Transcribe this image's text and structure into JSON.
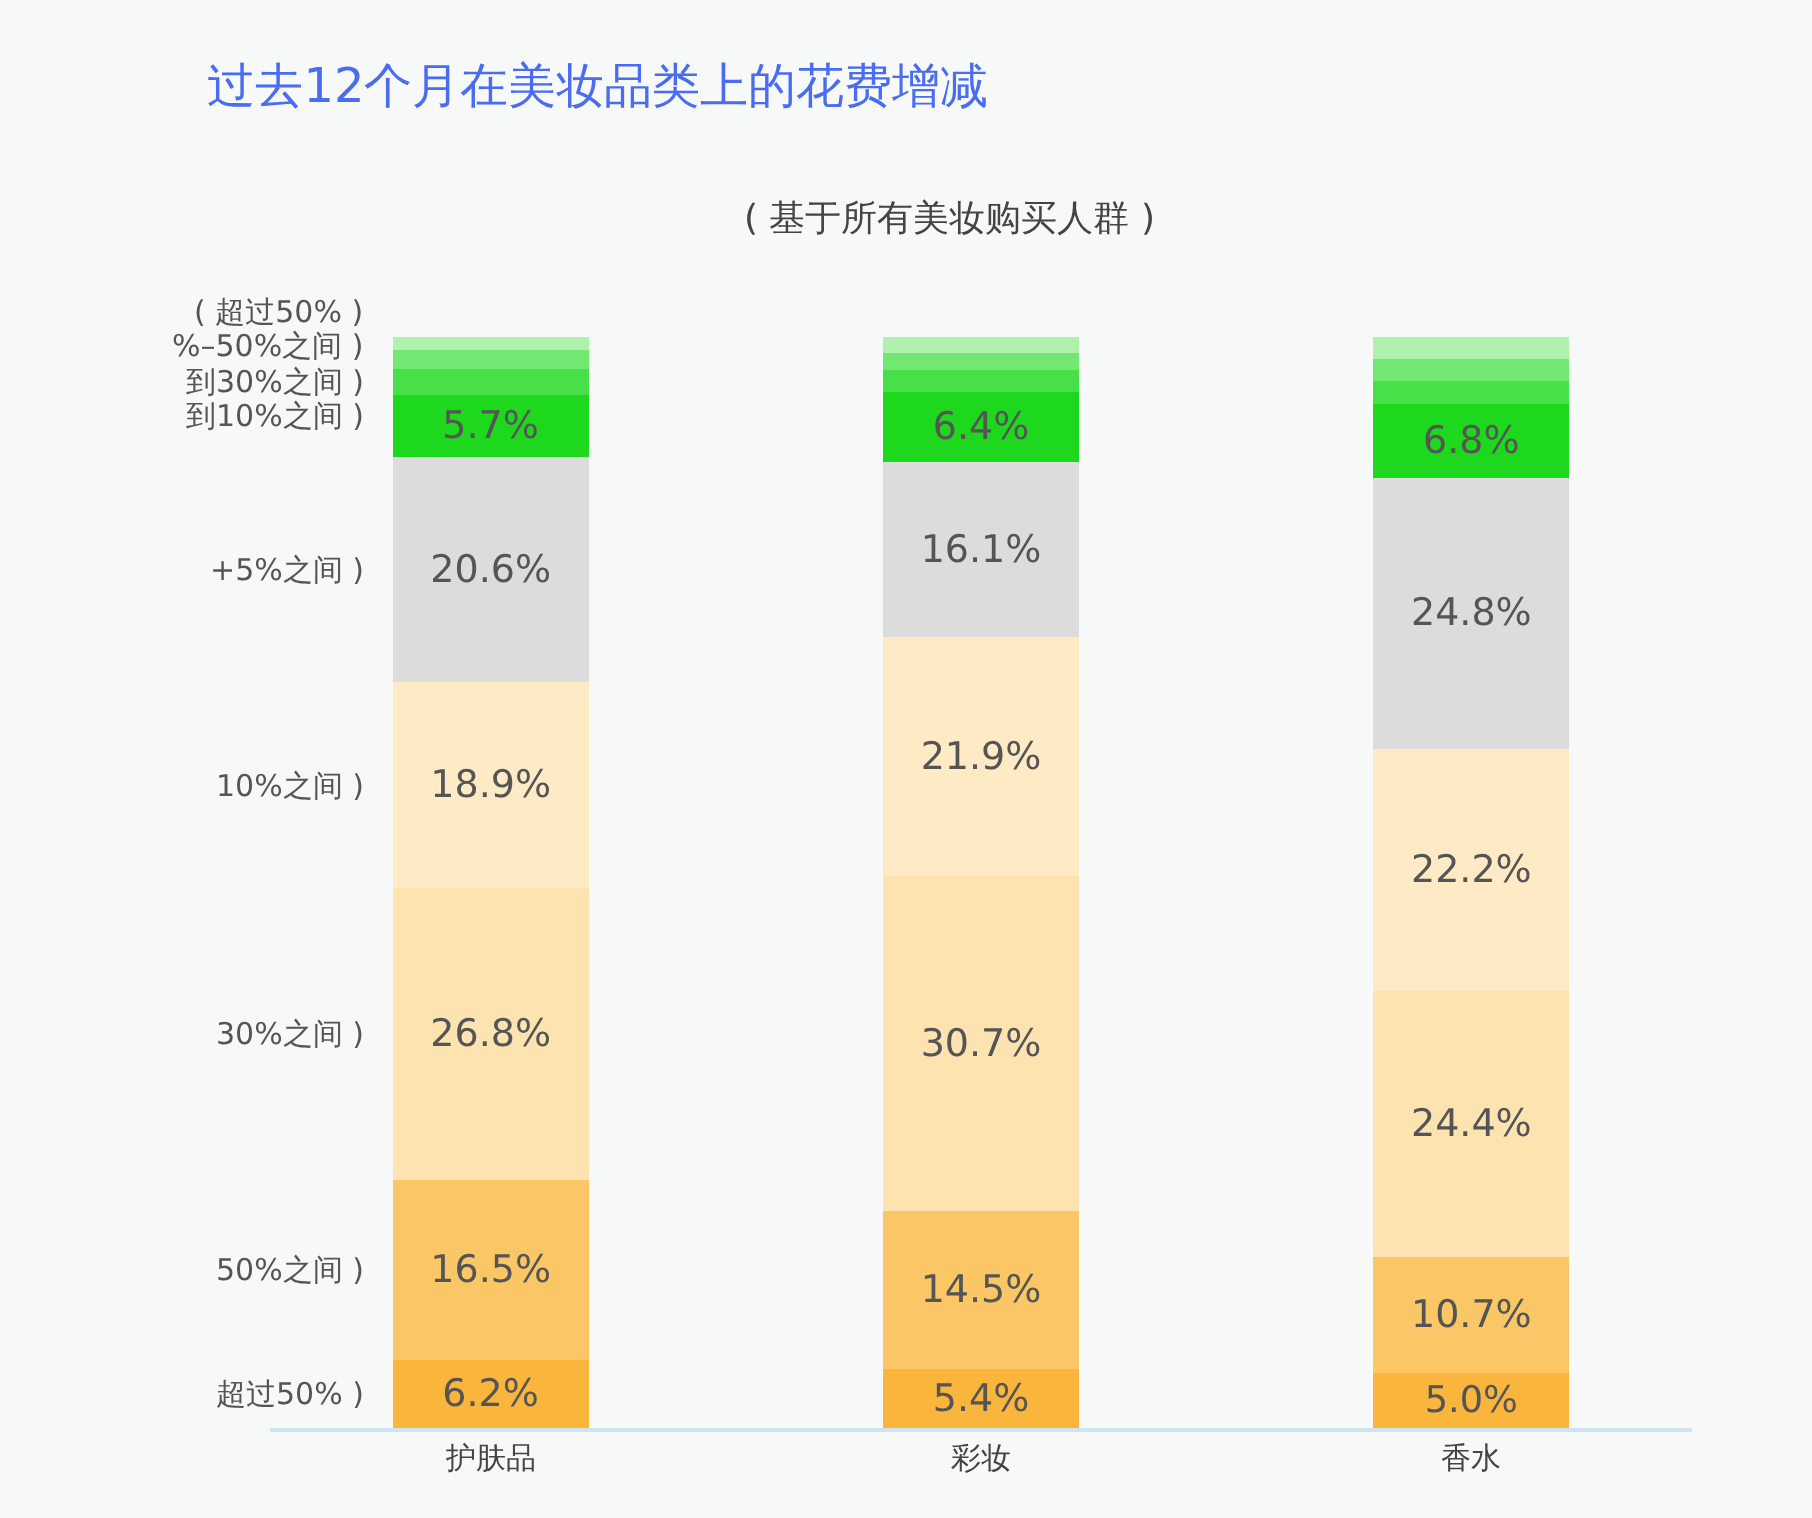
{
  "chart_data": {
    "type": "bar",
    "stacked": true,
    "title": "过去12个月在美妆品类上的花费增减",
    "subtitle": "( 基于所有美妆购买人群 )",
    "categories": [
      "护肤品",
      "彩妆",
      "香水"
    ],
    "legend": false,
    "series": [
      {
        "name": "超过50% )",
        "color": "#f9b53c",
        "values": [
          6.2,
          5.4,
          5.0
        ],
        "value_labels": [
          "6.2%",
          "5.4%",
          "5.0%"
        ]
      },
      {
        "name": "50%之间 )",
        "color": "#fbc766",
        "values": [
          16.5,
          14.5,
          10.7
        ],
        "value_labels": [
          "16.5%",
          "14.5%",
          "10.7%"
        ]
      },
      {
        "name": "30%之间 )",
        "color": "#fde3b0",
        "values": [
          26.8,
          30.7,
          24.4
        ],
        "value_labels": [
          "26.8%",
          "30.7%",
          "24.4%"
        ]
      },
      {
        "name": "10%之间 )",
        "color": "#feebc6",
        "values": [
          18.9,
          21.9,
          22.2
        ],
        "value_labels": [
          "18.9%",
          "21.9%",
          "22.2%"
        ]
      },
      {
        "name": "+5%之间 )",
        "color": "#dcdcdc",
        "values": [
          20.6,
          16.1,
          24.8
        ],
        "value_labels": [
          "20.6%",
          "16.1%",
          "24.8%"
        ]
      },
      {
        "name": "到10%之间 )",
        "color": "#1ed81e",
        "values": [
          5.7,
          6.4,
          6.8
        ],
        "value_labels": [
          "5.7%",
          "6.4%",
          "6.8%"
        ]
      },
      {
        "name": "到30%之间 )",
        "color": "#48e048",
        "values": [
          2.4,
          2.0,
          2.1
        ],
        "value_labels": [
          null,
          null,
          null
        ]
      },
      {
        "name": "%–50%之间 )",
        "color": "#72e872",
        "values": [
          1.7,
          1.6,
          2.0
        ],
        "value_labels": [
          null,
          null,
          null
        ]
      },
      {
        "name": "( 超过50% )",
        "color": "#aef2ae",
        "values": [
          1.2,
          1.4,
          2.0
        ],
        "value_labels": [
          null,
          null,
          null
        ]
      }
    ]
  }
}
